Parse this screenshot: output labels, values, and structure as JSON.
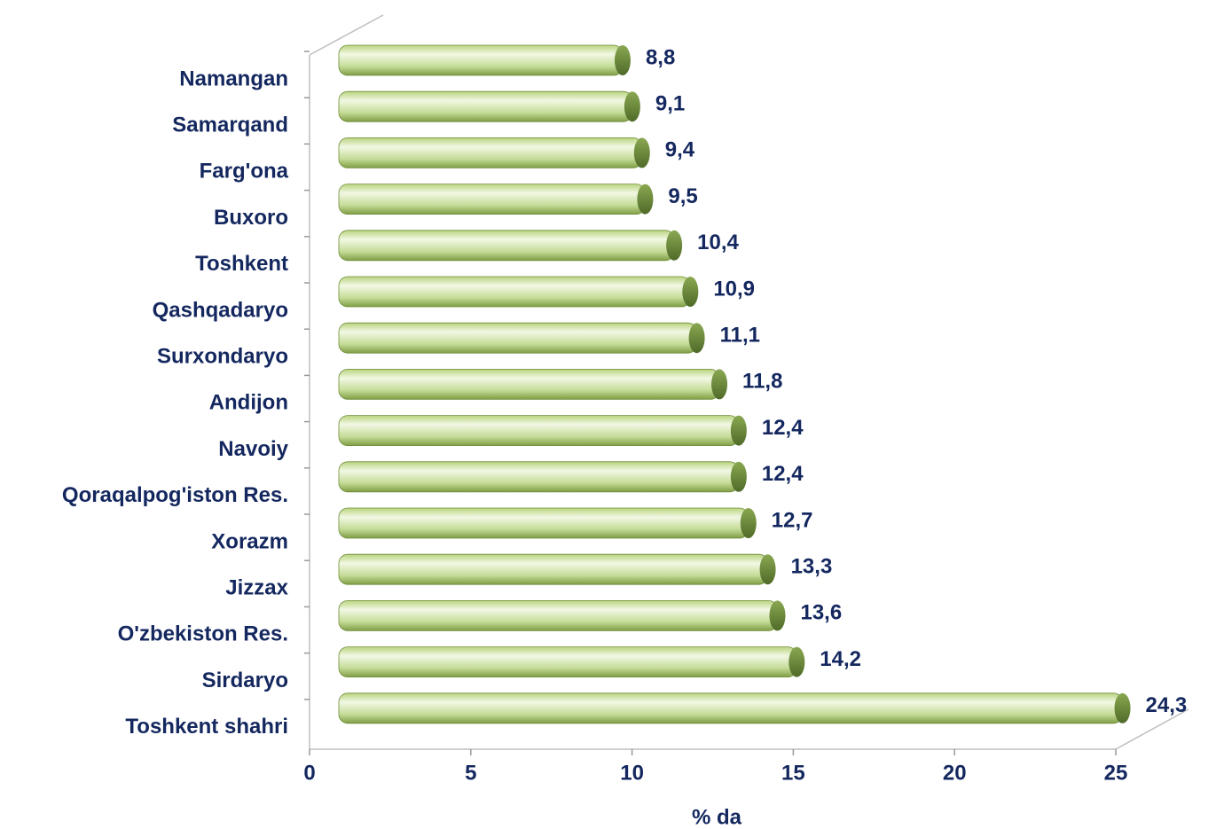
{
  "chart_data": {
    "type": "bar",
    "orientation": "horizontal",
    "x_label": "% da",
    "categories": [
      "Namangan",
      "Samarqand",
      "Farg'ona",
      "Buxoro",
      "Toshkent",
      "Qashqadaryo",
      "Surxondaryo",
      "Andijon",
      "Navoiy",
      "Qoraqalpog'iston Res.",
      "Xorazm",
      "Jizzax",
      "O'zbekiston Res.",
      "Sirdaryo",
      "Toshkent shahri"
    ],
    "values": [
      8.8,
      9.1,
      9.4,
      9.5,
      10.4,
      10.9,
      11.1,
      11.8,
      12.4,
      12.4,
      12.7,
      13.3,
      13.6,
      14.2,
      24.3
    ],
    "value_labels": [
      "8,8",
      "9,1",
      "9,4",
      "9,5",
      "10,4",
      "10,9",
      "11,1",
      "11,8",
      "12,4",
      "12,4",
      "12,7",
      "13,3",
      "13,6",
      "14,2",
      "24,3"
    ],
    "color": "#9bbb59",
    "xlim": [
      0,
      25
    ],
    "xticks": [
      0,
      5,
      10,
      15,
      20,
      25
    ],
    "grid": false
  }
}
